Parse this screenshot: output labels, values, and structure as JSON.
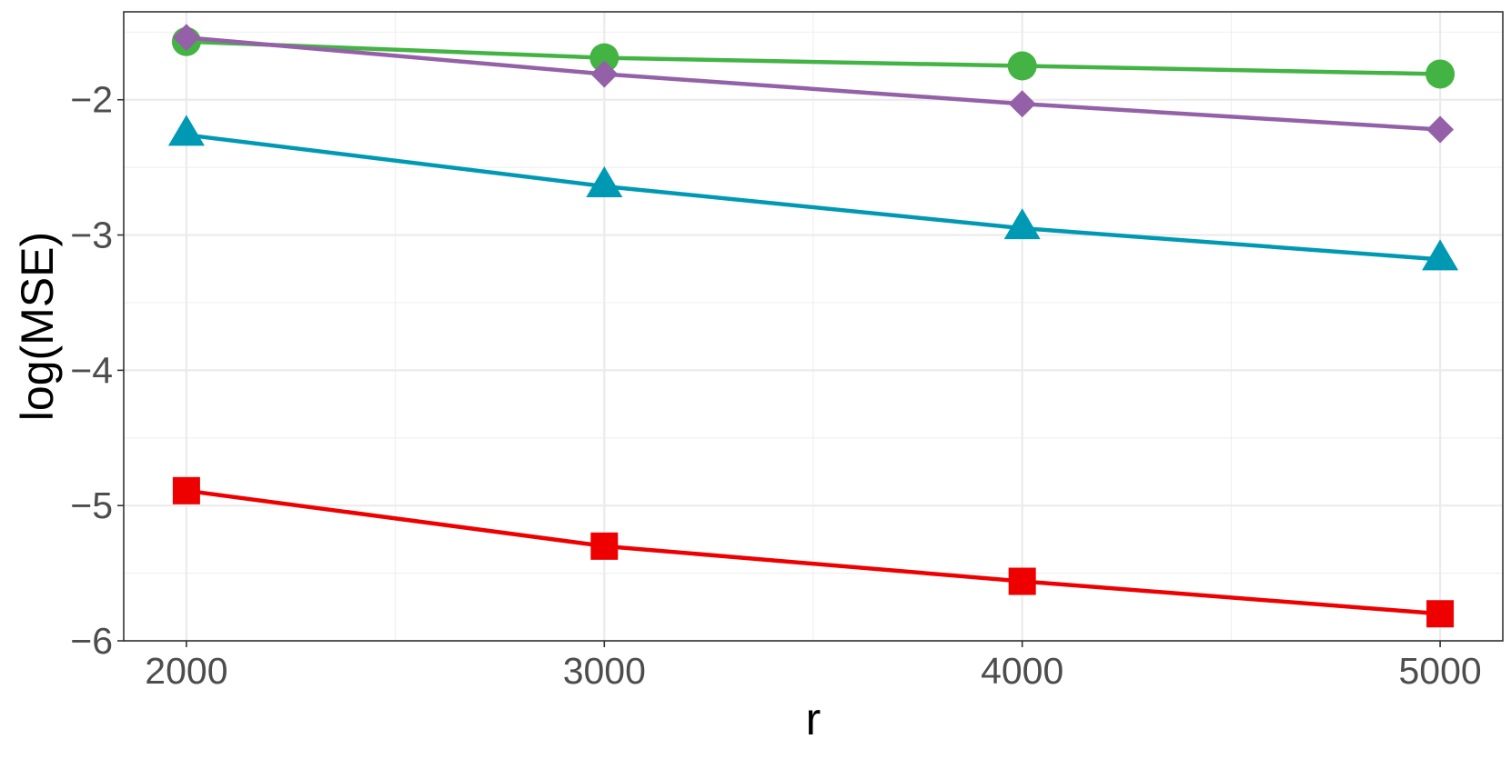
{
  "chart_data": {
    "type": "line",
    "title": "",
    "xlabel": "r",
    "ylabel": "log(MSE)",
    "x": [
      2000,
      3000,
      4000,
      5000
    ],
    "x_ticks": [
      "2000",
      "3000",
      "4000",
      "5000"
    ],
    "y_ticks": [
      "−6",
      "−5",
      "−4",
      "−3",
      "−2"
    ],
    "xlim": [
      1850,
      5150
    ],
    "ylim": [
      -6,
      -1.35
    ],
    "grid": true,
    "legend": "none",
    "series": [
      {
        "color": "#43b344",
        "marker": "circle",
        "values": [
          -1.57,
          -1.69,
          -1.75,
          -1.81
        ]
      },
      {
        "color": "#9460a8",
        "marker": "diamond",
        "values": [
          -1.54,
          -1.81,
          -2.03,
          -2.22
        ]
      },
      {
        "color": "#0099b4",
        "marker": "triangle",
        "values": [
          -2.26,
          -2.64,
          -2.95,
          -3.18
        ]
      },
      {
        "color": "#ee0000",
        "marker": "square",
        "values": [
          -4.89,
          -5.3,
          -5.56,
          -5.8
        ]
      }
    ]
  }
}
